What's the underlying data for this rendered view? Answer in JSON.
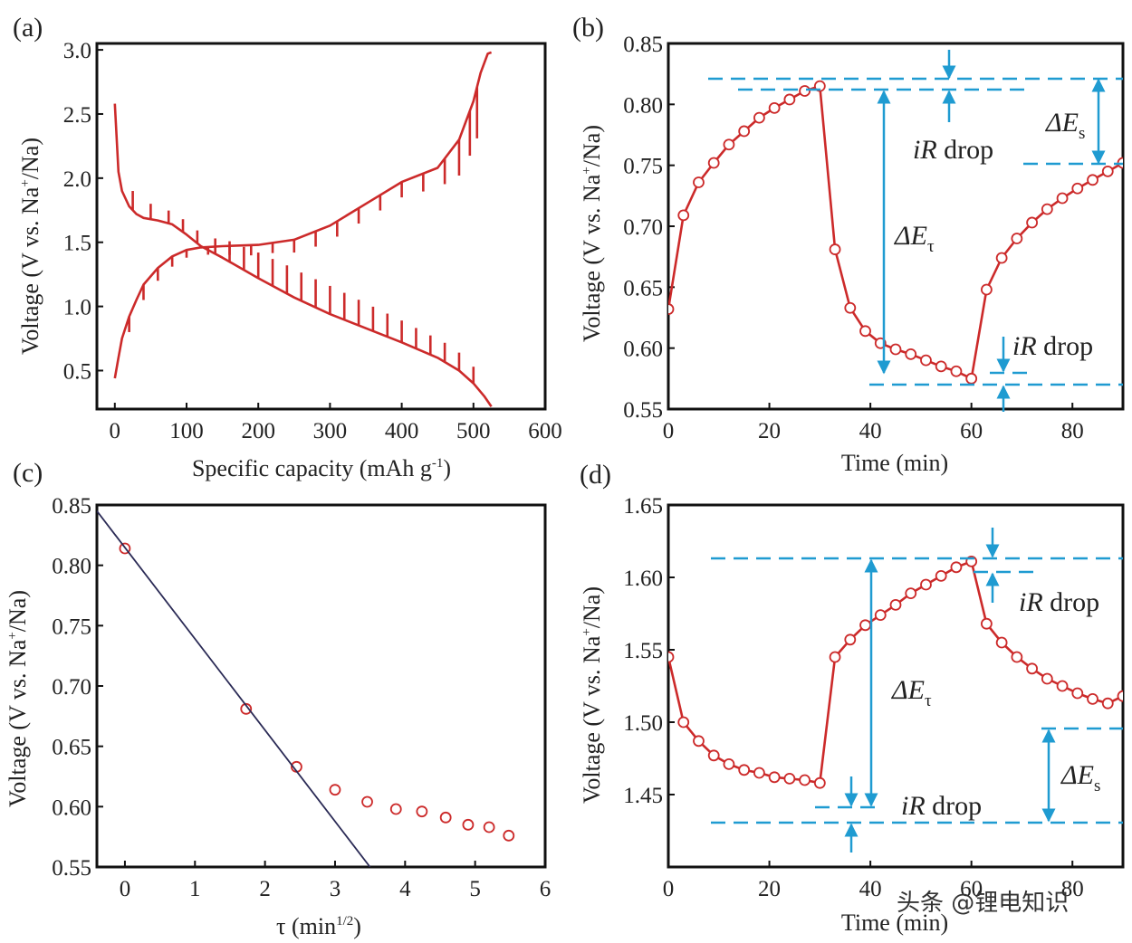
{
  "watermark": {
    "text": "头条 @锂电知识"
  },
  "chart_data": [
    {
      "id": "a",
      "panel_label": "(a)",
      "type": "line",
      "xlabel": "Specific capacity (mAh g",
      "xlabel_sup": "-1",
      "xlabel_end": ")",
      "ylabel": "Voltage (V vs. Na",
      "ylabel_sup": "+",
      "ylabel_end": "/Na)",
      "xlim": [
        -25,
        600
      ],
      "ylim": [
        0.2,
        3.05
      ],
      "xticks": [
        "0",
        "100",
        "200",
        "300",
        "400",
        "500",
        "600"
      ],
      "xtick_values": [
        0,
        100,
        200,
        300,
        400,
        500,
        600
      ],
      "yticks": [
        "0.5",
        "1.0",
        "1.5",
        "2.0",
        "2.5",
        "3.0"
      ],
      "ytick_values": [
        0.5,
        1.0,
        1.5,
        2.0,
        2.5,
        3.0
      ],
      "series": [
        {
          "name": "discharge",
          "color": "#cc2a2a",
          "x": [
            0,
            5,
            10,
            20,
            30,
            40,
            60,
            80,
            100,
            120,
            150,
            200,
            250,
            300,
            350,
            400,
            450,
            480,
            500,
            515,
            525
          ],
          "y": [
            2.58,
            2.05,
            1.9,
            1.78,
            1.72,
            1.69,
            1.67,
            1.64,
            1.56,
            1.47,
            1.38,
            1.22,
            1.07,
            0.94,
            0.83,
            0.72,
            0.6,
            0.5,
            0.4,
            0.3,
            0.22
          ]
        },
        {
          "name": "discharge-relaxation",
          "color": "#cc2a2a",
          "style": "spikes",
          "x": [
            25,
            50,
            75,
            95,
            115,
            140,
            160,
            180,
            200,
            220,
            240,
            260,
            280,
            300,
            320,
            340,
            360,
            380,
            400,
            420,
            440,
            460,
            480,
            500
          ],
          "dy": [
            0.15,
            0.12,
            0.1,
            0.1,
            0.1,
            0.12,
            0.16,
            0.18,
            0.2,
            0.21,
            0.22,
            0.22,
            0.22,
            0.22,
            0.21,
            0.2,
            0.19,
            0.18,
            0.17,
            0.16,
            0.15,
            0.15,
            0.14,
            0.13
          ]
        },
        {
          "name": "charge",
          "color": "#cc2a2a",
          "x": [
            0,
            5,
            10,
            20,
            30,
            40,
            60,
            80,
            100,
            120,
            150,
            200,
            250,
            300,
            350,
            400,
            450,
            480,
            500,
            510,
            520,
            525
          ],
          "y": [
            0.44,
            0.6,
            0.75,
            0.92,
            1.05,
            1.17,
            1.3,
            1.39,
            1.44,
            1.46,
            1.47,
            1.48,
            1.52,
            1.63,
            1.8,
            1.97,
            2.08,
            2.3,
            2.6,
            2.82,
            2.97,
            2.98
          ]
        },
        {
          "name": "charge-relaxation",
          "color": "#cc2a2a",
          "style": "spikes",
          "x": [
            20,
            40,
            60,
            80,
            100,
            130,
            160,
            190,
            220,
            250,
            280,
            310,
            340,
            370,
            400,
            430,
            460,
            480,
            495,
            505
          ],
          "dy": [
            -0.12,
            -0.12,
            -0.1,
            -0.08,
            -0.06,
            -0.06,
            -0.07,
            -0.08,
            -0.08,
            -0.1,
            -0.12,
            -0.12,
            -0.12,
            -0.12,
            -0.12,
            -0.14,
            -0.2,
            -0.28,
            -0.35,
            -0.4
          ]
        }
      ]
    },
    {
      "id": "b",
      "panel_label": "(b)",
      "type": "line",
      "xlabel": "Time (min)",
      "ylabel": "Voltage (V vs. Na",
      "ylabel_sup": "+",
      "ylabel_end": "/Na)",
      "xlim": [
        0,
        90
      ],
      "ylim": [
        0.55,
        0.85
      ],
      "xticks": [
        "0",
        "20",
        "40",
        "60",
        "80"
      ],
      "xtick_values": [
        0,
        20,
        40,
        60,
        80
      ],
      "yticks": [
        "0.55",
        "0.60",
        "0.65",
        "0.70",
        "0.75",
        "0.80",
        "0.85"
      ],
      "ytick_values": [
        0.55,
        0.6,
        0.65,
        0.7,
        0.75,
        0.8,
        0.85
      ],
      "series": [
        {
          "name": "GITT step",
          "color": "#cc2a2a",
          "marker": "open-circle",
          "x": [
            0,
            3,
            6,
            9,
            12,
            15,
            18,
            21,
            24,
            27,
            30,
            33,
            36,
            39,
            42,
            45,
            48,
            51,
            54,
            57,
            60,
            63,
            66,
            69,
            72,
            75,
            78,
            81,
            84,
            87,
            90
          ],
          "y": [
            0.632,
            0.709,
            0.736,
            0.752,
            0.767,
            0.778,
            0.789,
            0.797,
            0.804,
            0.811,
            0.815,
            0.681,
            0.633,
            0.614,
            0.604,
            0.599,
            0.595,
            0.59,
            0.585,
            0.581,
            0.575,
            0.648,
            0.674,
            0.69,
            0.703,
            0.714,
            0.723,
            0.731,
            0.738,
            0.745,
            0.752
          ]
        }
      ],
      "annotations": [
        {
          "text_pre": "i",
          "text_mid": "R",
          "text_post": " drop"
        },
        {
          "text_pre": "ΔE",
          "sub": "s"
        },
        {
          "text_pre": "ΔE",
          "sub": "τ"
        },
        {
          "text_pre": "i",
          "text_mid": "R",
          "text_post": " drop"
        }
      ]
    },
    {
      "id": "c",
      "panel_label": "(c)",
      "type": "scatter",
      "xlabel": "τ (min",
      "xlabel_sup": "1/2",
      "xlabel_end": ")",
      "ylabel": "Voltage (V vs. Na",
      "ylabel_sup": "+",
      "ylabel_end": "/Na)",
      "xlim": [
        -0.4,
        6
      ],
      "ylim": [
        0.55,
        0.85
      ],
      "xticks": [
        "0",
        "1",
        "2",
        "3",
        "4",
        "5",
        "6"
      ],
      "xtick_values": [
        0,
        1,
        2,
        3,
        4,
        5,
        6
      ],
      "yticks": [
        "0.55",
        "0.60",
        "0.65",
        "0.70",
        "0.75",
        "0.80",
        "0.85"
      ],
      "ytick_values": [
        0.55,
        0.6,
        0.65,
        0.7,
        0.75,
        0.8,
        0.85
      ],
      "series": [
        {
          "name": "data",
          "color": "#cc2a2a",
          "marker": "open-circle",
          "x": [
            0,
            1.73,
            2.45,
            3.0,
            3.46,
            3.87,
            4.24,
            4.58,
            4.9,
            5.2,
            5.48
          ],
          "y": [
            0.814,
            0.681,
            0.633,
            0.614,
            0.604,
            0.598,
            0.596,
            0.591,
            0.585,
            0.583,
            0.576
          ]
        },
        {
          "name": "linear fit",
          "color": "#2a2a55",
          "style": "line",
          "x": [
            -0.4,
            3.5
          ],
          "y": [
            0.845,
            0.55
          ]
        }
      ]
    },
    {
      "id": "d",
      "panel_label": "(d)",
      "type": "line",
      "xlabel": "Time (min)",
      "ylabel": "Voltage (V vs. Na",
      "ylabel_sup": "+",
      "ylabel_end": "/Na)",
      "xlim": [
        0,
        90
      ],
      "ylim": [
        1.4,
        1.65
      ],
      "xticks": [
        "0",
        "20",
        "40",
        "60",
        "80"
      ],
      "xtick_values": [
        0,
        20,
        40,
        60,
        80
      ],
      "yticks": [
        "1.45",
        "1.50",
        "1.55",
        "1.60",
        "1.65"
      ],
      "ytick_values": [
        1.45,
        1.5,
        1.55,
        1.6,
        1.65
      ],
      "series": [
        {
          "name": "GITT step",
          "color": "#cc2a2a",
          "marker": "open-circle",
          "x": [
            0,
            3,
            6,
            9,
            12,
            15,
            18,
            21,
            24,
            27,
            30,
            33,
            36,
            39,
            42,
            45,
            48,
            51,
            54,
            57,
            60,
            63,
            66,
            69,
            72,
            75,
            78,
            81,
            84,
            87,
            90
          ],
          "y": [
            1.545,
            1.5,
            1.487,
            1.477,
            1.471,
            1.467,
            1.465,
            1.462,
            1.461,
            1.46,
            1.458,
            1.545,
            1.557,
            1.567,
            1.574,
            1.581,
            1.589,
            1.595,
            1.601,
            1.607,
            1.611,
            1.568,
            1.555,
            1.545,
            1.537,
            1.53,
            1.525,
            1.52,
            1.516,
            1.513,
            1.518
          ]
        }
      ],
      "annotations": [
        {
          "text_pre": "i",
          "text_mid": "R",
          "text_post": " drop"
        },
        {
          "text_pre": "ΔE",
          "sub": "τ"
        },
        {
          "text_pre": "i",
          "text_mid": "R",
          "text_post": " drop"
        },
        {
          "text_pre": "ΔE",
          "sub": "s"
        }
      ]
    }
  ]
}
